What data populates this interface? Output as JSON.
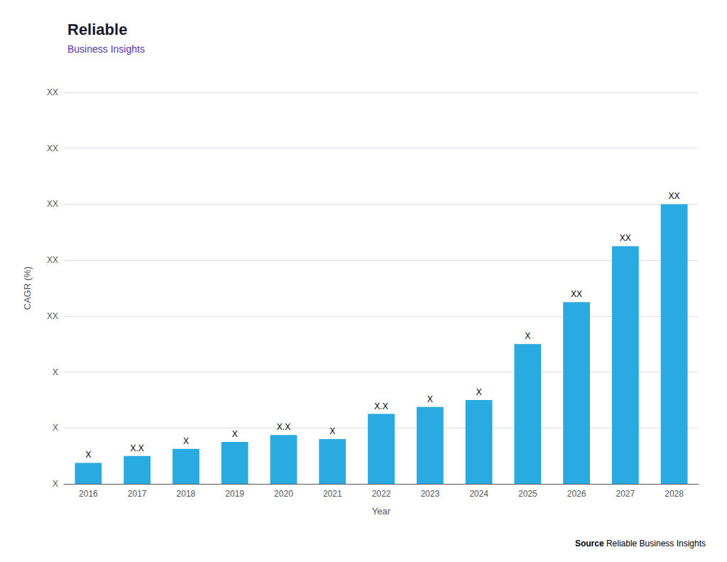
{
  "chart_data": {
    "type": "bar",
    "title": "Reliable",
    "subtitle": "Business Insights",
    "annotations": [
      "Source",
      "Reliable Business Insights"
    ],
    "xlabel": "Year",
    "ylabel": "CAGR (%)",
    "categories": [
      "2016",
      "2017",
      "2018",
      "2019",
      "2020",
      "2021",
      "2022",
      "2023",
      "2024",
      "2025",
      "2026",
      "2027",
      "2028"
    ],
    "values": [
      1.5,
      2.0,
      2.5,
      3.0,
      3.5,
      3.2,
      5.0,
      5.5,
      6.0,
      10.0,
      13.0,
      17.0,
      20.0
    ],
    "value_labels": [
      "X",
      "X.X",
      "X",
      "X",
      "X.X",
      "X",
      "X.X",
      "X",
      "X",
      "X",
      "XX",
      "XX",
      "XX"
    ],
    "data_labels": true,
    "color": "#29ABE2",
    "ylim": [
      0,
      28
    ],
    "yticks": [
      {
        "value": 0,
        "label": "X"
      },
      {
        "value": 4,
        "label": "X"
      },
      {
        "value": 8,
        "label": "X"
      },
      {
        "value": 12,
        "label": "XX"
      },
      {
        "value": 16,
        "label": "XX"
      },
      {
        "value": 20,
        "label": "XX"
      },
      {
        "value": 24,
        "label": "XX"
      },
      {
        "value": 28,
        "label": "XX"
      }
    ],
    "grid": true
  }
}
